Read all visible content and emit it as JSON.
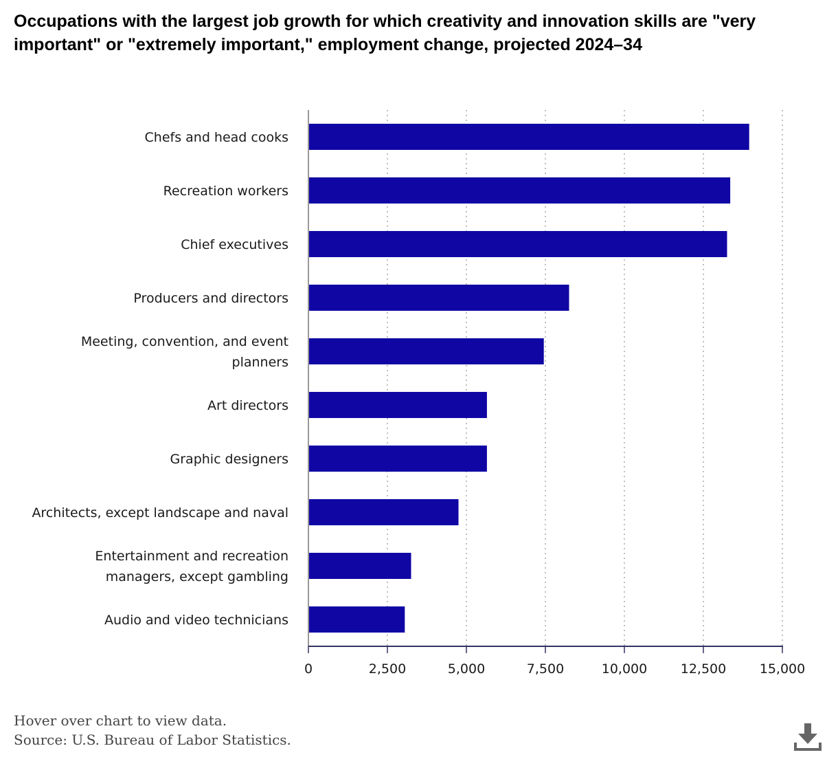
{
  "chart_data": {
    "type": "bar",
    "orientation": "horizontal",
    "title": "Occupations with the largest job growth for which creativity and innovation skills are \"very important\" or \"extremely important,\" employment change, projected 2024–34",
    "categories": [
      [
        "Chefs and head cooks"
      ],
      [
        "Recreation workers"
      ],
      [
        "Chief executives"
      ],
      [
        "Producers and directors"
      ],
      [
        "Meeting, convention, and event",
        "planners"
      ],
      [
        "Art directors"
      ],
      [
        "Graphic designers"
      ],
      [
        "Architects, except landscape and naval"
      ],
      [
        "Entertainment and recreation",
        "managers, except gambling"
      ],
      [
        "Audio and video technicians"
      ]
    ],
    "values": [
      13950,
      13350,
      13250,
      8250,
      7450,
      5650,
      5650,
      4750,
      3250,
      3050
    ],
    "xlim": [
      0,
      15000
    ],
    "xticks": [
      0,
      2500,
      5000,
      7500,
      10000,
      12500,
      15000
    ],
    "xtick_labels": [
      "0",
      "2,500",
      "5,000",
      "7,500",
      "10,000",
      "12,500",
      "15,000"
    ],
    "xlabel": "",
    "ylabel": "",
    "grid": "vertical-dotted",
    "bar_color": "#1006a4"
  },
  "footer": {
    "hover_note": "Hover over chart to view data.",
    "source": "Source: U.S. Bureau of Labor Statistics."
  },
  "icons": {
    "download": "download-icon"
  }
}
